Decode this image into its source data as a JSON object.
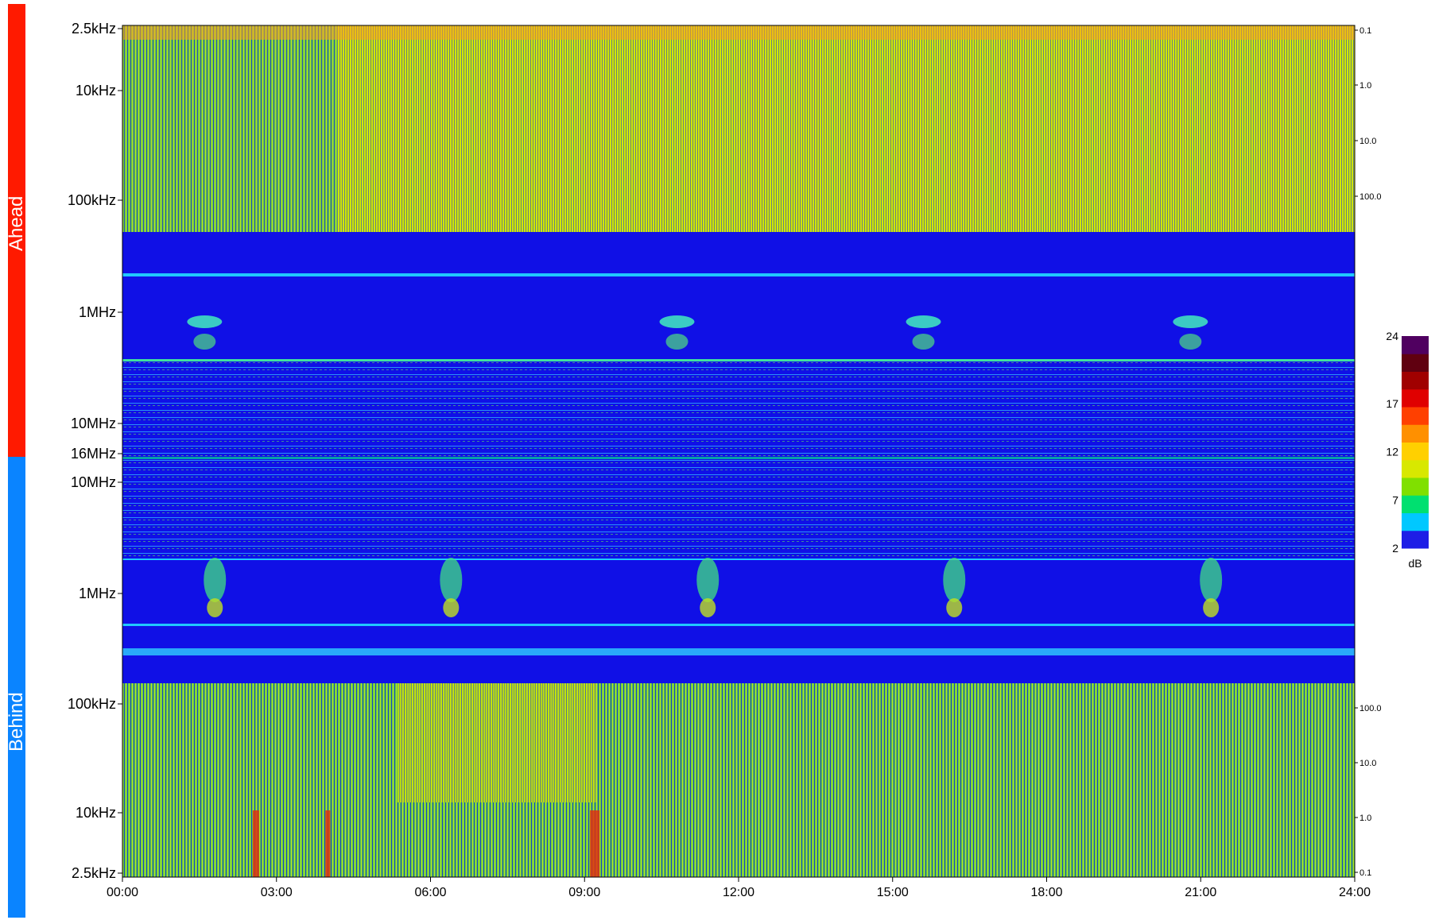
{
  "chart_data": {
    "type": "heatmap",
    "x_ticks": [
      "00:00",
      "03:00",
      "06:00",
      "09:00",
      "12:00",
      "15:00",
      "18:00",
      "21:00",
      "24:00"
    ],
    "xlim_hours": [
      0,
      24
    ],
    "panels": [
      {
        "name": "Ahead",
        "side_color": "#ff1a00",
        "freq_ticks": [
          "2.5kHz",
          "10kHz",
          "100kHz",
          "1MHz",
          "10MHz",
          "16MHz"
        ],
        "freq_range": [
          "2.5kHz",
          "16MHz"
        ],
        "right_ticks": [
          "0.1",
          "1.0",
          "10.0",
          "100.0"
        ],
        "bursts_hours": [
          1.6,
          10.8,
          15.6,
          20.8
        ]
      },
      {
        "name": "Behind",
        "side_color": "#0a84ff",
        "freq_ticks": [
          "10MHz",
          "1MHz",
          "100kHz",
          "10kHz",
          "2.5kHz"
        ],
        "freq_range": [
          "10MHz",
          "2.5kHz"
        ],
        "right_ticks": [
          "100.0",
          "10.0",
          "1.0",
          "0.1"
        ],
        "bursts_hours": [
          1.8,
          6.4,
          11.4,
          16.2,
          21.2
        ]
      }
    ],
    "colorbar": {
      "label": "dB",
      "ticks": [
        24,
        17,
        12,
        7,
        2
      ],
      "range": [
        2,
        24
      ],
      "colors": [
        "#1e1ee6",
        "#00c8ff",
        "#00e070",
        "#80e000",
        "#d8e800",
        "#ffd000",
        "#ff9000",
        "#ff4000",
        "#e00000",
        "#a00000",
        "#600010",
        "#500060"
      ]
    },
    "background_color": "#1010e6"
  }
}
